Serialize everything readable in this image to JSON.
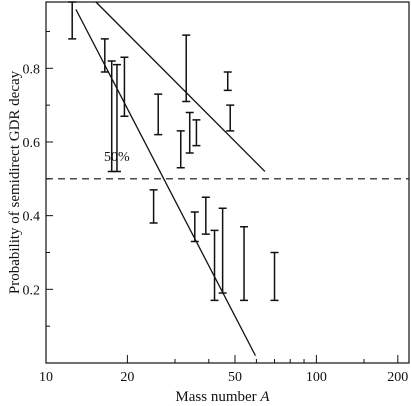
{
  "chart_data": {
    "type": "scatter",
    "title": "",
    "xlabel_text": "Mass number ",
    "xlabel_var": "A",
    "ylabel": "Probability of semidirect GDR decay",
    "x_scale": "log",
    "xlim": [
      10,
      220
    ],
    "ylim": [
      0.0,
      0.98
    ],
    "x_ticks": [
      {
        "value": 10,
        "label": "10"
      },
      {
        "value": 20,
        "label": "20"
      },
      {
        "value": 50,
        "label": "50"
      },
      {
        "value": 100,
        "label": "100"
      },
      {
        "value": 200,
        "label": "200"
      }
    ],
    "x_minor_ticks": [
      30,
      40,
      60,
      70,
      80,
      90,
      150
    ],
    "y_ticks": [
      {
        "value": 0.2,
        "label": "0.2"
      },
      {
        "value": 0.4,
        "label": "0.4"
      },
      {
        "value": 0.6,
        "label": "0.6"
      },
      {
        "value": 0.8,
        "label": "0.8"
      }
    ],
    "y_minor_ticks": [
      0.1,
      0.3,
      0.5,
      0.7,
      0.9
    ],
    "reference_line": {
      "y": 0.5,
      "label": "50%",
      "style": "dashed"
    },
    "trend_lines": [
      {
        "x": [
          15.3,
          64.5
        ],
        "y": [
          0.98,
          0.52
        ]
      },
      {
        "x": [
          12.9,
          59.5
        ],
        "y": [
          0.96,
          0.02
        ]
      }
    ],
    "error_bars": [
      {
        "x": 12.5,
        "low": 0.88,
        "high": 0.98
      },
      {
        "x": 16.5,
        "low": 0.79,
        "high": 0.88
      },
      {
        "x": 17.5,
        "low": 0.52,
        "high": 0.82
      },
      {
        "x": 18.3,
        "low": 0.52,
        "high": 0.81
      },
      {
        "x": 19.5,
        "low": 0.67,
        "high": 0.83
      },
      {
        "x": 26.0,
        "low": 0.62,
        "high": 0.73
      },
      {
        "x": 25.0,
        "low": 0.38,
        "high": 0.47
      },
      {
        "x": 31.5,
        "low": 0.53,
        "high": 0.63
      },
      {
        "x": 33.0,
        "low": 0.71,
        "high": 0.89
      },
      {
        "x": 34.0,
        "low": 0.57,
        "high": 0.68
      },
      {
        "x": 36.0,
        "low": 0.59,
        "high": 0.66
      },
      {
        "x": 35.5,
        "low": 0.33,
        "high": 0.41
      },
      {
        "x": 39.0,
        "low": 0.35,
        "high": 0.45
      },
      {
        "x": 42.0,
        "low": 0.17,
        "high": 0.36
      },
      {
        "x": 45.0,
        "low": 0.19,
        "high": 0.42
      },
      {
        "x": 47.0,
        "low": 0.74,
        "high": 0.79
      },
      {
        "x": 48.0,
        "low": 0.63,
        "high": 0.7
      },
      {
        "x": 54.0,
        "low": 0.17,
        "high": 0.37
      },
      {
        "x": 70.0,
        "low": 0.17,
        "high": 0.3
      }
    ]
  }
}
